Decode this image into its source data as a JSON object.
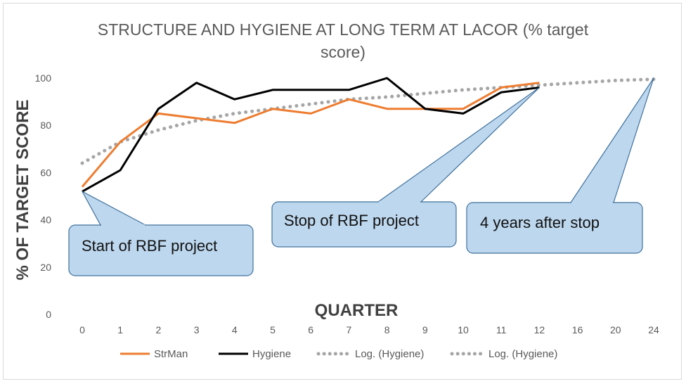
{
  "chart_data": {
    "type": "line",
    "title_line1": "STRUCTURE AND HYGIENE AT LONG TERM AT LACOR (% target",
    "title_line2": "score)",
    "xlabel": "QUARTER",
    "ylabel": "% OF TARGET SCORE",
    "categories": [
      "0",
      "1",
      "2",
      "3",
      "4",
      "5",
      "6",
      "7",
      "8",
      "9",
      "10",
      "11",
      "12",
      "16",
      "20",
      "24"
    ],
    "ylim": [
      0,
      100
    ],
    "yticks": [
      0,
      20,
      40,
      60,
      80,
      100
    ],
    "grid": false,
    "legend_position": "bottom",
    "series": [
      {
        "name": "StrMan",
        "style": "solid",
        "color": "#ed7d31",
        "values": [
          54,
          73,
          85,
          83,
          81,
          87,
          85,
          91,
          87,
          87,
          87,
          96,
          98,
          null,
          null,
          null
        ]
      },
      {
        "name": "Hygiene",
        "style": "solid",
        "color": "#000000",
        "values": [
          52,
          61,
          87,
          98,
          91,
          95,
          95,
          95,
          100,
          87,
          85,
          94,
          96,
          null,
          null,
          null
        ]
      },
      {
        "name": "Log. (Hygiene)",
        "style": "dotted",
        "color": "#a6a6a6",
        "values": [
          64,
          73,
          78,
          82,
          85,
          87,
          89,
          91,
          92,
          93.5,
          95,
          96,
          97,
          98,
          99,
          99.5
        ]
      },
      {
        "name": "Log. (Hygiene)",
        "style": "dotted",
        "color": "#a6a6a6",
        "values": [
          64,
          73,
          78,
          82,
          85,
          87,
          89,
          91,
          92,
          93.5,
          95,
          96,
          97,
          98,
          99,
          99.5
        ]
      }
    ],
    "annotations": [
      {
        "text": "Start of RBF project",
        "target_index": 0,
        "target_value": 52
      },
      {
        "text": "Stop of RBF project",
        "target_index": 12,
        "target_value": 96
      },
      {
        "text": "4 years after stop",
        "target_index": 15,
        "target_value": 100
      }
    ]
  }
}
